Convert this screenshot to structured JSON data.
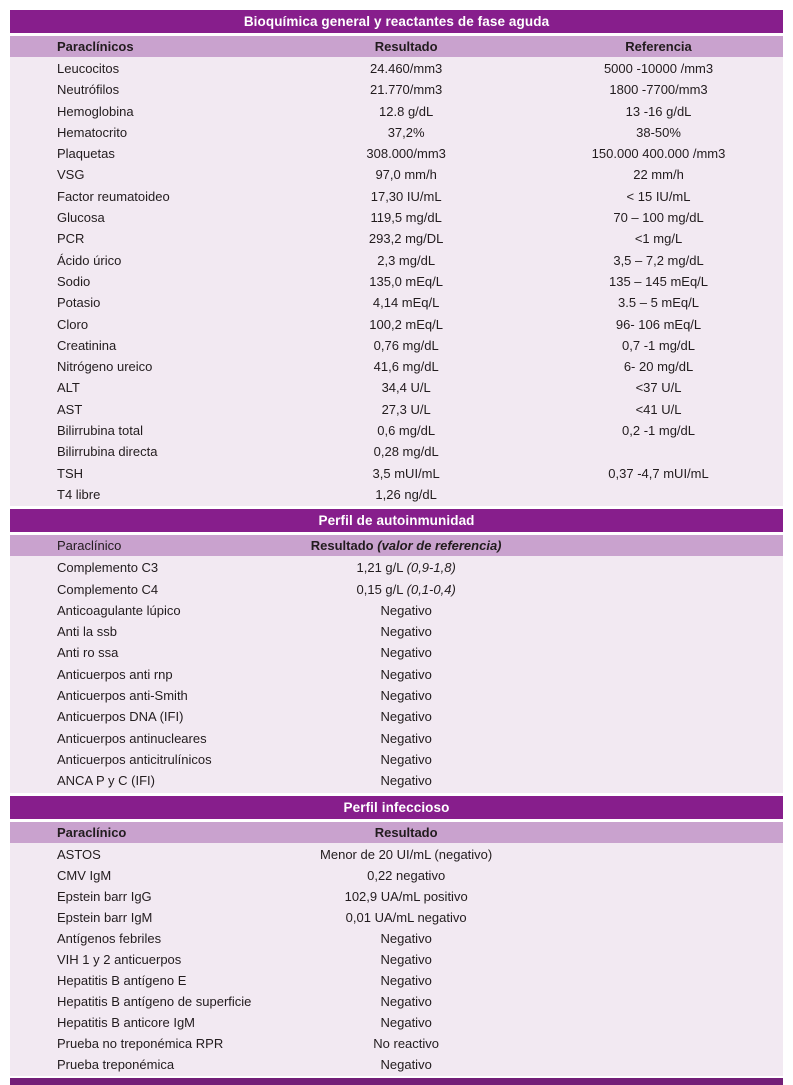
{
  "colors": {
    "section_title_bar": "#871e8c",
    "column_header_bg": "#c9a2ce",
    "body_bg": "#f2e9f2",
    "bottom_bar": "#731f78",
    "text": "#221c1e",
    "title_text": "#ffffff"
  },
  "sections": [
    {
      "title": "Bioquímica general y reactantes de fase aguda",
      "headers": [
        "Paraclínicos",
        "Resultado",
        "Referencia"
      ],
      "rows": [
        {
          "label": "Leucocitos",
          "result": "24.460/mm3",
          "reference": "5000 -10000 /mm3"
        },
        {
          "label": "Neutrófilos",
          "result": "21.770/mm3",
          "reference": "1800 -7700/mm3"
        },
        {
          "label": "Hemoglobina",
          "result": "12.8 g/dL",
          "reference": "13 -16 g/dL"
        },
        {
          "label": "Hematocrito",
          "result": "37,2%",
          "reference": "38-50%"
        },
        {
          "label": "Plaquetas",
          "result": "308.000/mm3",
          "reference": "150.000 400.000 /mm3"
        },
        {
          "label": "VSG",
          "result": "97,0 mm/h",
          "reference": "22 mm/h"
        },
        {
          "label": "Factor reumatoideo",
          "result": "17,30 IU/mL",
          "reference": "< 15 IU/mL"
        },
        {
          "label": "Glucosa",
          "result": "119,5 mg/dL",
          "reference": "70 – 100 mg/dL"
        },
        {
          "label": "PCR",
          "result": "293,2 mg/DL",
          "reference": "<1 mg/L"
        },
        {
          "label": "Ácido úrico",
          "result": "2,3 mg/dL",
          "reference": "3,5 – 7,2 mg/dL"
        },
        {
          "label": "Sodio",
          "result": "135,0 mEq/L",
          "reference": "135 – 145 mEq/L"
        },
        {
          "label": "Potasio",
          "result": "4,14 mEq/L",
          "reference": "3.5 – 5 mEq/L"
        },
        {
          "label": "Cloro",
          "result": "100,2 mEq/L",
          "reference": "96- 106 mEq/L"
        },
        {
          "label": "Creatinina",
          "result": "0,76 mg/dL",
          "reference": "0,7 -1 mg/dL"
        },
        {
          "label": "Nitrógeno ureico",
          "result": "41,6 mg/dL",
          "reference": "6- 20 mg/dL"
        },
        {
          "label": "ALT",
          "result": "34,4 U/L",
          "reference": "<37 U/L"
        },
        {
          "label": "AST",
          "result": "27,3 U/L",
          "reference": "<41 U/L"
        },
        {
          "label": "Bilirrubina total",
          "result": "0,6 mg/dL",
          "reference": "0,2 -1 mg/dL"
        },
        {
          "label": "Bilirrubina directa",
          "result": "0,28 mg/dL",
          "reference": ""
        },
        {
          "label": "TSH",
          "result": "3,5 mUI/mL",
          "reference": "0,37 -4,7 mUI/mL"
        },
        {
          "label": "T4 libre",
          "result": "1,26 ng/dL",
          "reference": ""
        }
      ]
    },
    {
      "title": "Perfil de autoinmunidad",
      "headers": [
        "Paraclínico",
        "Resultado"
      ],
      "header_italic": "(valor de referencia)",
      "rows": [
        {
          "label": "Complemento C3",
          "result": "1,21 g/L",
          "result_italic": "(0,9-1,8)"
        },
        {
          "label": "Complemento C4",
          "result": "0,15 g/L",
          "result_italic": "(0,1-0,4)"
        },
        {
          "label": "Anticoagulante lúpico",
          "result": "Negativo"
        },
        {
          "label": "Anti la ssb",
          "result": "Negativo"
        },
        {
          "label": "Anti ro ssa",
          "result": "Negativo"
        },
        {
          "label": "Anticuerpos anti rnp",
          "result": "Negativo"
        },
        {
          "label": "Anticuerpos anti-Smith",
          "result": "Negativo"
        },
        {
          "label": "Anticuerpos DNA (IFI)",
          "result": "Negativo"
        },
        {
          "label": "Anticuerpos antinucleares",
          "result": "Negativo"
        },
        {
          "label": "Anticuerpos anticitrulínicos",
          "result": "Negativo"
        },
        {
          "label": "ANCA P y C (IFI)",
          "result": "Negativo"
        }
      ]
    },
    {
      "title": "Perfil infeccioso",
      "headers": [
        "Paraclínico",
        "Resultado"
      ],
      "rows": [
        {
          "label": "ASTOS",
          "result": "Menor de 20 UI/mL (negativo)"
        },
        {
          "label": "CMV IgM",
          "result": "0,22 negativo"
        },
        {
          "label": "Epstein barr IgG",
          "result": "102,9 UA/mL positivo"
        },
        {
          "label": "Epstein barr IgM",
          "result": "0,01 UA/mL negativo"
        },
        {
          "label": "Antígenos febriles",
          "result": "Negativo"
        },
        {
          "label": "VIH 1 y 2 anticuerpos",
          "result": "Negativo"
        },
        {
          "label": "Hepatitis B antígeno E",
          "result": "Negativo"
        },
        {
          "label": "Hepatitis B antígeno de superficie",
          "result": "Negativo"
        },
        {
          "label": "Hepatitis B anticore IgM",
          "result": "Negativo"
        },
        {
          "label": "Prueba no treponémica RPR",
          "result": "No reactivo"
        },
        {
          "label": "Prueba treponémica",
          "result": "Negativo"
        }
      ]
    }
  ]
}
